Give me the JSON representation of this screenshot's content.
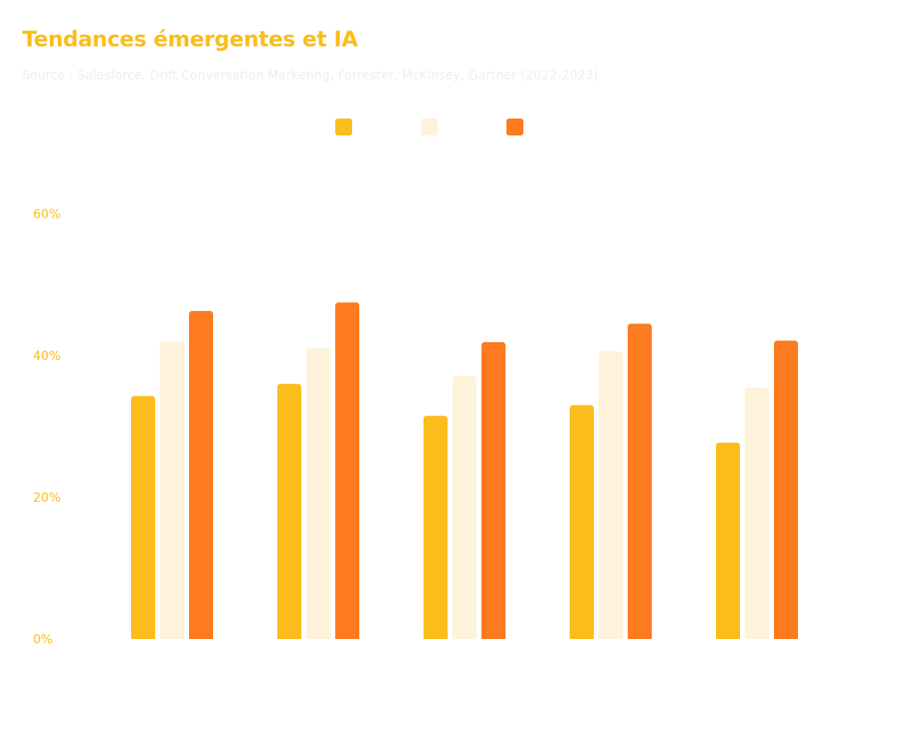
{
  "title": "Tendances émergentes et IA",
  "subtitle": "Source : Salesforce, Drift Conversation Marketing, Forrester, McKinsey, Gartner (2022-2023)",
  "colors": {
    "title": "#fbbd1c",
    "axis_text": "#fbbd1c",
    "subtitle": "#eeeeee"
  },
  "chart_data": {
    "type": "bar",
    "title": "Tendances émergentes et IA",
    "subtitle": "Source : Salesforce, Drift Conversation Marketing, Forrester, McKinsey, Gartner (2022-2023)",
    "xlabel": "",
    "ylabel": "",
    "ylim": [
      0,
      60
    ],
    "yticks": [
      "0%",
      "20%",
      "40%",
      "60%"
    ],
    "grid": false,
    "legend_position": "top-center",
    "categories": [
      "",
      "",
      "",
      "",
      ""
    ],
    "series": [
      {
        "color": "#fbbd1c",
        "values": [
          34.3,
          36.0,
          31.5,
          33.0,
          27.7
        ]
      },
      {
        "color": "#fef2da",
        "values": [
          42.0,
          41.0,
          37.1,
          40.6,
          35.5
        ]
      },
      {
        "color": "#fd7a1f",
        "values": [
          46.3,
          47.5,
          41.9,
          44.5,
          42.1
        ]
      }
    ]
  }
}
